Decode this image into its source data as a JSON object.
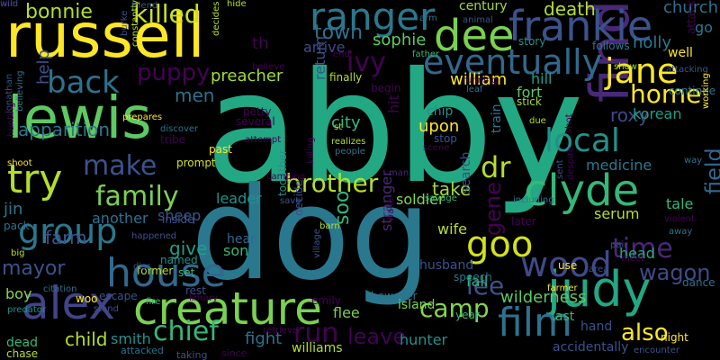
{
  "words": [
    {
      "t": "abby",
      "c": "#23a884"
    },
    {
      "t": "dog",
      "c": "#2a788e"
    },
    {
      "t": "russell",
      "c": "#fde725"
    },
    {
      "t": "lewis",
      "c": "#5ec962"
    },
    {
      "t": "find",
      "c": "#482878"
    },
    {
      "t": "creature",
      "c": "#7ad151"
    },
    {
      "t": "judy",
      "c": "#22a884"
    },
    {
      "t": "alex",
      "c": "#414487"
    },
    {
      "t": "house",
      "c": "#31688e"
    },
    {
      "t": "clyde",
      "c": "#35b779"
    },
    {
      "t": "film",
      "c": "#2c728e"
    },
    {
      "t": "frankie",
      "c": "#3b528b"
    },
    {
      "t": "dee",
      "c": "#7ad151"
    },
    {
      "t": "ranger",
      "c": "#2a788e"
    },
    {
      "t": "eventually",
      "c": "#31688e"
    },
    {
      "t": "try",
      "c": "#b5de2b"
    },
    {
      "t": "group",
      "c": "#2a788e"
    },
    {
      "t": "jane",
      "c": "#fde725"
    },
    {
      "t": "back",
      "c": "#2c728e"
    },
    {
      "t": "local",
      "c": "#21918c"
    },
    {
      "t": "goo",
      "c": "#d2e21b"
    },
    {
      "t": "wood",
      "c": "#3e4a89"
    },
    {
      "t": "family",
      "c": "#7ad151"
    },
    {
      "t": "make",
      "c": "#3b528b"
    },
    {
      "t": "brother",
      "c": "#b5de2b"
    },
    {
      "t": "chief",
      "c": "#35b779"
    },
    {
      "t": "run",
      "c": "#440154"
    },
    {
      "t": "killed",
      "c": "#cae11f"
    },
    {
      "t": "camp",
      "c": "#86d549"
    },
    {
      "t": "time",
      "c": "#482878"
    },
    {
      "t": "home",
      "c": "#fde725"
    },
    {
      "t": "lee",
      "c": "#3b528b"
    },
    {
      "t": "leave",
      "c": "#440154"
    },
    {
      "t": "wagon",
      "c": "#3e4a89"
    },
    {
      "t": "puppy",
      "c": "#440154"
    },
    {
      "t": "dr",
      "c": "#b5de2b"
    },
    {
      "t": "mayor",
      "c": "#3b528b"
    },
    {
      "t": "also",
      "c": "#fde725"
    },
    {
      "t": "ivy",
      "c": "#440154"
    },
    {
      "t": "town",
      "c": "#2c728e"
    },
    {
      "t": "bonnie",
      "c": "#b5de2b"
    },
    {
      "t": "child",
      "c": "#b5de2b"
    },
    {
      "t": "wilderness",
      "c": "#5ec962"
    },
    {
      "t": "field",
      "c": "#31688e"
    },
    {
      "t": "soo",
      "c": "#35b779"
    },
    {
      "t": "gene",
      "c": "#440154"
    },
    {
      "t": "preacher",
      "c": "#a0da39"
    },
    {
      "t": "farm",
      "c": "#3b528b"
    },
    {
      "t": "sophie",
      "c": "#5ec962"
    },
    {
      "t": "men",
      "c": "#2c728e"
    },
    {
      "t": "church",
      "c": "#2c728e"
    },
    {
      "t": "give",
      "c": "#1f9e89"
    },
    {
      "t": "holly",
      "c": "#2a788e"
    },
    {
      "t": "go",
      "c": "#2a788e"
    },
    {
      "t": "take",
      "c": "#a0da39"
    },
    {
      "t": "death",
      "c": "#b5de2b"
    },
    {
      "t": "william",
      "c": "#fde725"
    },
    {
      "t": "hunter",
      "c": "#21918c"
    },
    {
      "t": "roxy",
      "c": "#3e4a89"
    },
    {
      "t": "fight",
      "c": "#2c728e"
    },
    {
      "t": "help",
      "c": "#3b528b"
    },
    {
      "t": "apparition",
      "c": "#2a788e"
    },
    {
      "t": "upon",
      "c": "#fde725"
    },
    {
      "t": "city",
      "c": "#35b779"
    },
    {
      "t": "smith",
      "c": "#21918c"
    },
    {
      "t": "head",
      "c": "#22a884"
    },
    {
      "t": "return",
      "c": "#3b528b"
    },
    {
      "t": "korean",
      "c": "#1f9e89"
    },
    {
      "t": "fort",
      "c": "#5ec962"
    },
    {
      "t": "hill",
      "c": "#1f9e89"
    },
    {
      "t": "medicine",
      "c": "#2a788e"
    },
    {
      "t": "leader",
      "c": "#21918c"
    },
    {
      "t": "another",
      "c": "#2c728e"
    },
    {
      "t": "stranger",
      "c": "#482878"
    },
    {
      "t": "th",
      "c": "#440154"
    },
    {
      "t": "arrive",
      "c": "#3e4a89"
    },
    {
      "t": "century",
      "c": "#a0da39"
    },
    {
      "t": "serum",
      "c": "#b5de2b"
    },
    {
      "t": "soldier",
      "c": "#86d549"
    },
    {
      "t": "wife",
      "c": "#b5de2b"
    },
    {
      "t": "sheep",
      "c": "#3b528b"
    },
    {
      "t": "jin",
      "c": "#2a788e"
    },
    {
      "t": "boy",
      "c": "#86d549"
    },
    {
      "t": "hit",
      "c": "#440154"
    },
    {
      "t": "tale",
      "c": "#35b779"
    },
    {
      "t": "son",
      "c": "#35b779"
    },
    {
      "t": "fall",
      "c": "#35b779"
    },
    {
      "t": "flee",
      "c": "#7ad151"
    },
    {
      "t": "williams",
      "c": "#b5de2b"
    },
    {
      "t": "dead",
      "c": "#35b779"
    },
    {
      "t": "chase",
      "c": "#b5de2b"
    },
    {
      "t": "island",
      "c": "#7ad151"
    },
    {
      "t": "chip",
      "c": "#21918c"
    },
    {
      "t": "train",
      "c": "#2a788e"
    },
    {
      "t": "search",
      "c": "#3e4a89"
    },
    {
      "t": "prompt",
      "c": "#d2e21b"
    },
    {
      "t": "past",
      "c": "#fde725"
    },
    {
      "t": "inside",
      "c": "#3b528b"
    },
    {
      "t": "named",
      "c": "#21918c"
    },
    {
      "t": "former",
      "c": "#b5de2b"
    },
    {
      "t": "hear",
      "c": "#31688e"
    },
    {
      "t": "set",
      "c": "#35b779"
    },
    {
      "t": "husband",
      "c": "#3b528b"
    },
    {
      "t": "last",
      "c": "#35b779"
    },
    {
      "t": "hand",
      "c": "#3b528b"
    },
    {
      "t": "night",
      "c": "#fde725"
    },
    {
      "t": "use",
      "c": "#fde725"
    },
    {
      "t": "story",
      "c": "#21918c"
    },
    {
      "t": "follows",
      "c": "#2a788e"
    },
    {
      "t": "finally",
      "c": "#b5de2b"
    },
    {
      "t": "begin",
      "c": "#440154"
    },
    {
      "t": "stick",
      "c": "#a0da39"
    },
    {
      "t": "stop",
      "c": "#3b528b"
    },
    {
      "t": "well",
      "c": "#fde725"
    },
    {
      "t": "continue",
      "c": "#2a788e"
    },
    {
      "t": "attack",
      "c": "#440154"
    },
    {
      "t": "accidentally",
      "c": "#3b528b"
    },
    {
      "t": "year",
      "c": "#35b779"
    },
    {
      "t": "speech",
      "c": "#2a788e"
    },
    {
      "t": "rest",
      "c": "#3e4a89"
    },
    {
      "t": "woo",
      "c": "#fde725"
    },
    {
      "t": "escape",
      "c": "#3b528b"
    },
    {
      "t": "attacked",
      "c": "#2c728e"
    },
    {
      "t": "taking",
      "c": "#3b528b"
    },
    {
      "t": "since",
      "c": "#440154"
    },
    {
      "t": "retrieve",
      "c": "#440154"
    },
    {
      "t": "however",
      "c": "#2c728e"
    },
    {
      "t": "together",
      "c": "#21918c"
    },
    {
      "t": "decide",
      "c": "#3b528b"
    },
    {
      "t": "village",
      "c": "#3b528b"
    },
    {
      "t": "barn",
      "c": "#b5de2b"
    },
    {
      "t": "encounter",
      "c": "#3b528b"
    },
    {
      "t": "people",
      "c": "#2c728e"
    },
    {
      "t": "realizes",
      "c": "#b5de2b"
    },
    {
      "t": "scene",
      "c": "#440154"
    },
    {
      "t": "st",
      "c": "#b5de2b"
    },
    {
      "t": "killing",
      "c": "#440154"
    },
    {
      "t": "man",
      "c": "#482878"
    },
    {
      "t": "save",
      "c": "#3b528b"
    },
    {
      "t": "savage",
      "c": "#35b779"
    },
    {
      "t": "including",
      "c": "#2c728e"
    },
    {
      "t": "later",
      "c": "#440154"
    },
    {
      "t": "farmer",
      "c": "#fde725"
    },
    {
      "t": "dance",
      "c": "#2c728e"
    },
    {
      "t": "pack",
      "c": "#2c728e"
    },
    {
      "t": "shoot",
      "c": "#fde725"
    },
    {
      "t": "jonathan",
      "c": "#3b528b"
    },
    {
      "t": "hunting",
      "c": "#440154"
    },
    {
      "t": "believing",
      "c": "#2c728e"
    },
    {
      "t": "petty",
      "c": "#440154"
    },
    {
      "t": "several",
      "c": "#440154"
    },
    {
      "t": "prepares",
      "c": "#fde725"
    },
    {
      "t": "discover",
      "c": "#2c728e"
    },
    {
      "t": "tribe",
      "c": "#440154"
    },
    {
      "t": "big",
      "c": "#b5de2b"
    },
    {
      "t": "happened",
      "c": "#3b528b"
    },
    {
      "t": "disc",
      "c": "#3b528b"
    },
    {
      "t": "stand",
      "c": "#3b528b"
    },
    {
      "t": "library",
      "c": "#440154"
    },
    {
      "t": "citation",
      "c": "#2c728e"
    },
    {
      "t": "fire",
      "c": "#35b779"
    },
    {
      "t": "emily",
      "c": "#440154"
    },
    {
      "t": "predator",
      "c": "#21918c"
    },
    {
      "t": "attempt",
      "c": "#440154"
    },
    {
      "t": "due",
      "c": "#b5de2b"
    },
    {
      "t": "shot",
      "c": "#440154"
    },
    {
      "t": "despite",
      "c": "#440154"
    },
    {
      "t": "sent",
      "c": "#3b528b"
    },
    {
      "t": "running",
      "c": "#440154"
    },
    {
      "t": "leaf",
      "c": "#2c728e"
    },
    {
      "t": "wake",
      "c": "#440154"
    },
    {
      "t": "area",
      "c": "#3b528b"
    },
    {
      "t": "pair",
      "c": "#3b528b"
    },
    {
      "t": "meet",
      "c": "#440154"
    },
    {
      "t": "violent",
      "c": "#440154"
    },
    {
      "t": "away",
      "c": "#2c728e"
    },
    {
      "t": "way",
      "c": "#2c728e"
    },
    {
      "t": "working",
      "c": "#fde725"
    },
    {
      "t": "friend",
      "c": "#3b528b"
    },
    {
      "t": "hide",
      "c": "#b5de2b"
    },
    {
      "t": "constantly",
      "c": "#b5de2b"
    },
    {
      "t": "burke",
      "c": "#3b528b"
    },
    {
      "t": "decides",
      "c": "#b5de2b"
    },
    {
      "t": "believe",
      "c": "#440154"
    },
    {
      "t": "end",
      "c": "#440154"
    },
    {
      "t": "father",
      "c": "#35b779"
    },
    {
      "t": "arm",
      "c": "#2c728e"
    },
    {
      "t": "animal",
      "c": "#3b528b"
    },
    {
      "t": "show",
      "c": "#b5de2b"
    },
    {
      "t": "attacking",
      "c": "#3b528b"
    },
    {
      "t": "camping",
      "c": "#440154"
    },
    {
      "t": "like",
      "c": "#440154"
    },
    {
      "t": "wild",
      "c": "#3b528b"
    }
  ]
}
